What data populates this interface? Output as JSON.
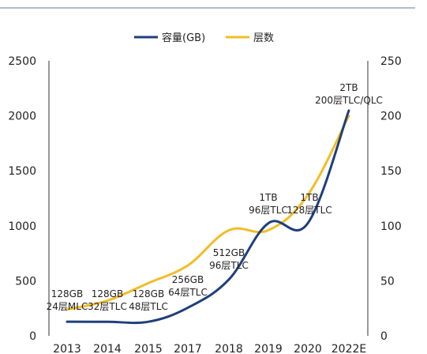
{
  "chart_data": {
    "type": "line",
    "categories": [
      "2013",
      "2014",
      "2015",
      "2017",
      "2018",
      "2019",
      "2020",
      "2022E"
    ],
    "series": [
      {
        "name": "容量(GB)",
        "axis": "left",
        "color": "#1f3f7a",
        "values": [
          128,
          128,
          128,
          256,
          512,
          1024,
          1024,
          2048
        ]
      },
      {
        "name": "层数",
        "axis": "right",
        "color": "#f2bd26",
        "values": [
          24,
          32,
          48,
          64,
          96,
          96,
          128,
          200
        ]
      }
    ],
    "y_left": {
      "ticks": [
        "0",
        "500",
        "1000",
        "1500",
        "2000",
        "2500"
      ],
      "ylim": [
        0,
        2500
      ]
    },
    "y_right": {
      "ticks": [
        "0",
        "50",
        "100",
        "150",
        "200",
        "250"
      ],
      "ylim": [
        0,
        250
      ]
    },
    "legend_placement": "top-center",
    "grid": false,
    "annotations": [
      {
        "lines": [
          "128GB",
          "24层MLC"
        ]
      },
      {
        "lines": [
          "128GB",
          "32层TLC"
        ]
      },
      {
        "lines": [
          "128GB",
          "48层TLC"
        ]
      },
      {
        "lines": [
          "256GB",
          "64层TLC"
        ]
      },
      {
        "lines": [
          "512GB",
          "96层TLC"
        ]
      },
      {
        "lines": [
          "1TB",
          "96层TLC"
        ]
      },
      {
        "lines": [
          "1TB",
          "128层TLC"
        ]
      },
      {
        "lines": [
          "2TB",
          "200层TLC/QLC"
        ]
      }
    ]
  }
}
